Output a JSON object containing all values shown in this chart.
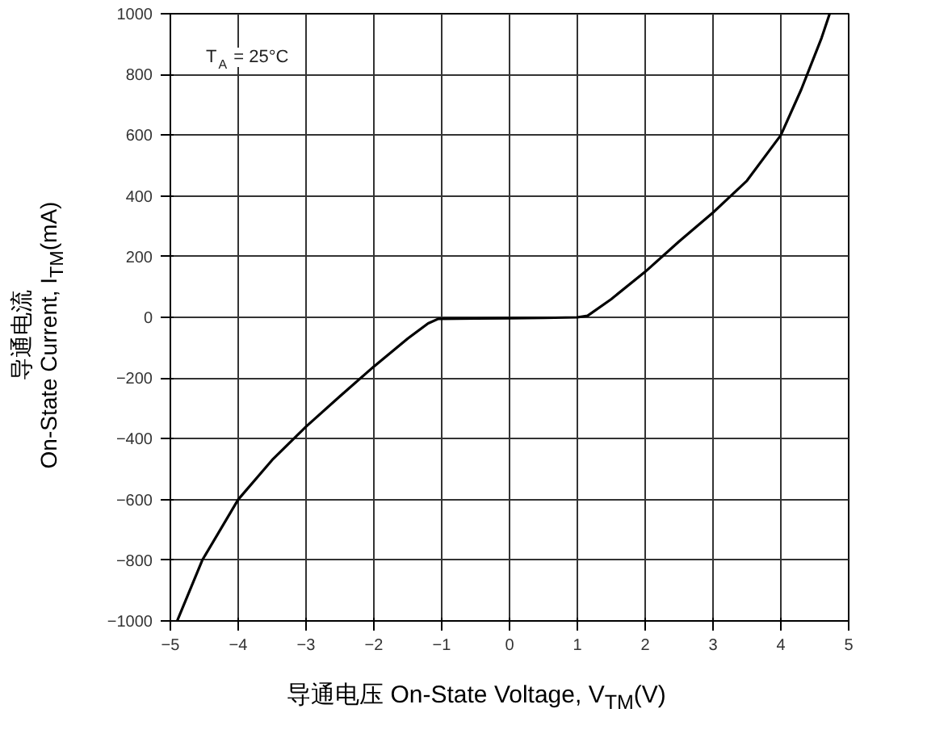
{
  "chart_data": {
    "type": "line",
    "xlabel": "导通电压 On-State Voltage, V$_{TM}$(V)",
    "ylabel": "导通电流\nOn-State Current, I$_{TM}$(mA)",
    "annotations": [
      "T$_{A}$ = 25°C"
    ],
    "xlim": [
      -5,
      5
    ],
    "ylim": [
      -1000,
      1000
    ],
    "xticks": [
      -5,
      -4,
      -3,
      -2,
      -1,
      0,
      1,
      2,
      3,
      4,
      5
    ],
    "yticks": [
      -1000,
      -800,
      -600,
      -400,
      -200,
      0,
      200,
      400,
      600,
      800,
      1000
    ],
    "grid": true,
    "marker": "none",
    "line_style": "solid",
    "series": [
      {
        "color": "#000000",
        "x": [
          -4.9,
          -4.53,
          -4.0,
          -3.5,
          -3.0,
          -2.5,
          -2.0,
          -1.5,
          -1.2,
          -1.05,
          -0.5,
          0,
          0.5,
          1.0,
          1.15,
          1.5,
          2.0,
          2.5,
          3.0,
          3.5,
          4.0,
          4.3,
          4.6,
          4.72
        ],
        "values": [
          -1000,
          -800,
          -600,
          -470,
          -360,
          -260,
          -162,
          -70,
          -20,
          -5,
          -4,
          -3,
          -2,
          0,
          5,
          60,
          150,
          250,
          345,
          450,
          600,
          750,
          920,
          1000
        ]
      }
    ]
  }
}
